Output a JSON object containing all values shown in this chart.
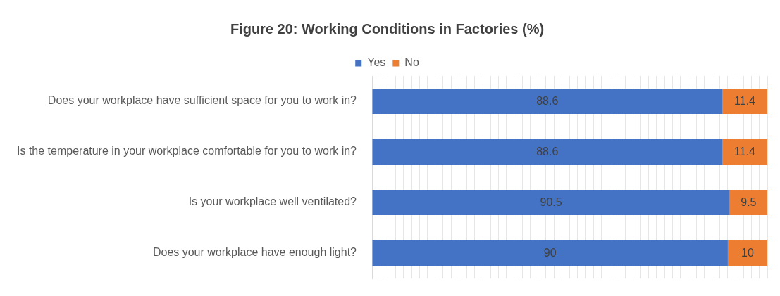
{
  "chart_data": {
    "type": "bar",
    "orientation": "horizontal",
    "stacked": true,
    "title": "Figure 20: Working Conditions in Factories (%)",
    "categories": [
      "Does your workplace have sufficient space for you to work in?",
      "Is the temperature in your workplace comfortable for you to work in?",
      "Is your workplace well ventilated?",
      "Does your workplace have enough light?"
    ],
    "series": [
      {
        "name": "Yes",
        "color": "#4472c4",
        "values": [
          88.6,
          88.6,
          90.5,
          90
        ]
      },
      {
        "name": "No",
        "color": "#ed7d31",
        "values": [
          11.4,
          11.4,
          9.5,
          10
        ]
      }
    ],
    "xlim": [
      0,
      100
    ],
    "xticks": [
      {
        "value": 0,
        "label": null
      },
      {
        "value": 2,
        "label": null
      },
      {
        "value": 4,
        "label": null
      },
      {
        "value": 6,
        "label": null
      },
      {
        "value": 8,
        "label": null
      },
      {
        "value": 10,
        "label": null
      },
      {
        "value": 12,
        "label": null
      },
      {
        "value": 14,
        "label": null
      },
      {
        "value": 16,
        "label": null
      },
      {
        "value": 18,
        "label": null
      },
      {
        "value": 20,
        "label": null
      },
      {
        "value": 22,
        "label": null
      },
      {
        "value": 24,
        "label": null
      },
      {
        "value": 26,
        "label": null
      },
      {
        "value": 28,
        "label": null
      },
      {
        "value": 30,
        "label": null
      },
      {
        "value": 32,
        "label": null
      },
      {
        "value": 34,
        "label": null
      },
      {
        "value": 36,
        "label": null
      },
      {
        "value": 38,
        "label": null
      },
      {
        "value": 40,
        "label": null
      },
      {
        "value": 42,
        "label": null
      },
      {
        "value": 44,
        "label": null
      },
      {
        "value": 46,
        "label": null
      },
      {
        "value": 48,
        "label": null
      },
      {
        "value": 50,
        "label": null
      },
      {
        "value": 52,
        "label": null
      },
      {
        "value": 54,
        "label": null
      },
      {
        "value": 56,
        "label": null
      },
      {
        "value": 58,
        "label": null
      },
      {
        "value": 60,
        "label": null
      },
      {
        "value": 62,
        "label": null
      },
      {
        "value": 64,
        "label": null
      },
      {
        "value": 66,
        "label": null
      },
      {
        "value": 68,
        "label": null
      },
      {
        "value": 70,
        "label": null
      },
      {
        "value": 72,
        "label": null
      },
      {
        "value": 74,
        "label": null
      },
      {
        "value": 76,
        "label": null
      },
      {
        "value": 78,
        "label": null
      },
      {
        "value": 80,
        "label": null
      },
      {
        "value": 82,
        "label": null
      },
      {
        "value": 84,
        "label": null
      },
      {
        "value": 86,
        "label": null
      },
      {
        "value": 88,
        "label": null
      },
      {
        "value": 90,
        "label": null
      },
      {
        "value": 92,
        "label": null
      },
      {
        "value": 94,
        "label": null
      },
      {
        "value": 96,
        "label": null
      },
      {
        "value": 98,
        "label": null
      },
      {
        "value": 100,
        "label": null
      }
    ],
    "grid": "x",
    "legend": "top",
    "tick_labels": "y",
    "data_labels": true
  }
}
